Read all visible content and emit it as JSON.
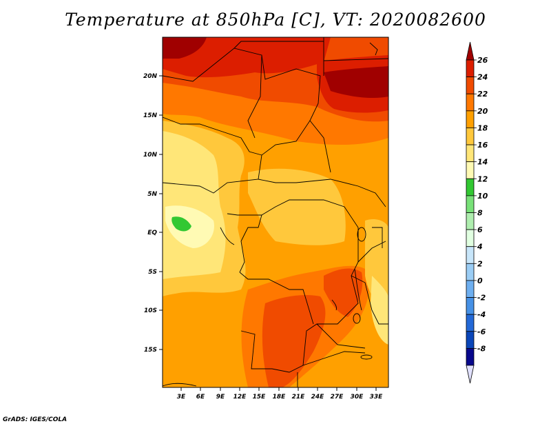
{
  "title": "Temperature at 850hPa [C], VT: 2020082600",
  "credit": "GrADS: IGES/COLA",
  "map": {
    "lat_ticks": [
      "20N",
      "15N",
      "10N",
      "5N",
      "EQ",
      "5S",
      "10S",
      "15S"
    ],
    "lon_ticks": [
      "3E",
      "6E",
      "9E",
      "12E",
      "15E",
      "18E",
      "21E",
      "24E",
      "27E",
      "30E",
      "33E"
    ]
  },
  "colorbar": {
    "labels": [
      "26",
      "24",
      "22",
      "20",
      "18",
      "16",
      "14",
      "12",
      "10",
      "8",
      "6",
      "4",
      "2",
      "0",
      "-2",
      "-4",
      "-6",
      "-8"
    ],
    "colors": [
      "#a00000",
      "#dc1e00",
      "#f04b00",
      "#ff7800",
      "#ffa000",
      "#ffc83c",
      "#ffe678",
      "#fffab4",
      "#32c832",
      "#78e178",
      "#afeeaf",
      "#e1ffe1",
      "#c8e6fa",
      "#9bcdf5",
      "#6eaff0",
      "#4691e6",
      "#2369d7",
      "#0a46b9",
      "#08088c",
      "#e1e1ff"
    ]
  }
}
